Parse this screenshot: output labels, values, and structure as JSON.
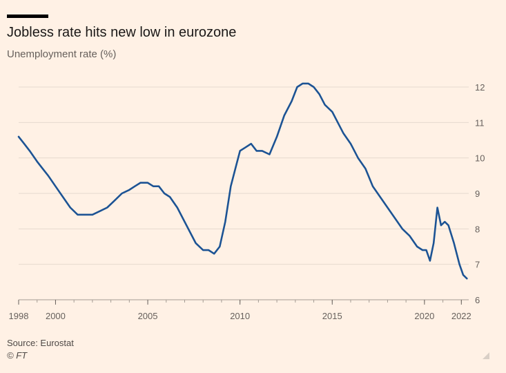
{
  "header": {
    "title": "Jobless rate hits new low in eurozone",
    "subtitle": "Unemployment rate (%)"
  },
  "footer": {
    "source": "Source: Eurostat",
    "copyright": "© FT"
  },
  "colors": {
    "background": "#fff1e5",
    "line": "#1c5394",
    "grid": "#e6d9ce",
    "axis": "#66605c"
  },
  "chart_data": {
    "type": "line",
    "title": "Jobless rate hits new low in eurozone",
    "ylabel": "Unemployment rate (%)",
    "xlabel": "",
    "ylim": [
      6,
      12
    ],
    "xlim": [
      1998,
      2022.4
    ],
    "y_ticks": [
      6,
      7,
      8,
      9,
      10,
      11,
      12
    ],
    "x_tick_labels": [
      "1998",
      "2000",
      "2005",
      "2010",
      "2015",
      "2020",
      "2022"
    ],
    "x_tick_values": [
      1998,
      2000,
      2005,
      2010,
      2015,
      2020,
      2022
    ],
    "grid": true,
    "series": [
      {
        "name": "Eurozone unemployment rate",
        "x": [
          1998.0,
          1998.3,
          1998.6,
          1999.0,
          1999.3,
          1999.6,
          2000.0,
          2000.4,
          2000.8,
          2001.2,
          2001.6,
          2002.0,
          2002.4,
          2002.8,
          2003.2,
          2003.6,
          2004.0,
          2004.3,
          2004.6,
          2005.0,
          2005.3,
          2005.6,
          2005.9,
          2006.2,
          2006.6,
          2007.0,
          2007.3,
          2007.6,
          2008.0,
          2008.3,
          2008.6,
          2008.9,
          2009.2,
          2009.5,
          2009.8,
          2010.0,
          2010.3,
          2010.6,
          2010.9,
          2011.2,
          2011.6,
          2012.0,
          2012.4,
          2012.8,
          2013.1,
          2013.4,
          2013.7,
          2014.0,
          2014.3,
          2014.6,
          2015.0,
          2015.3,
          2015.6,
          2016.0,
          2016.4,
          2016.8,
          2017.2,
          2017.6,
          2018.0,
          2018.4,
          2018.8,
          2019.2,
          2019.6,
          2019.9,
          2020.1,
          2020.3,
          2020.5,
          2020.7,
          2020.9,
          2021.1,
          2021.3,
          2021.6,
          2021.9,
          2022.1,
          2022.3
        ],
        "values": [
          10.6,
          10.4,
          10.2,
          9.9,
          9.7,
          9.5,
          9.2,
          8.9,
          8.6,
          8.4,
          8.4,
          8.4,
          8.5,
          8.6,
          8.8,
          9.0,
          9.1,
          9.2,
          9.3,
          9.3,
          9.2,
          9.2,
          9.0,
          8.9,
          8.6,
          8.2,
          7.9,
          7.6,
          7.4,
          7.4,
          7.3,
          7.5,
          8.2,
          9.2,
          9.8,
          10.2,
          10.3,
          10.4,
          10.2,
          10.2,
          10.1,
          10.6,
          11.2,
          11.6,
          12.0,
          12.1,
          12.1,
          12.0,
          11.8,
          11.5,
          11.3,
          11.0,
          10.7,
          10.4,
          10.0,
          9.7,
          9.2,
          8.9,
          8.6,
          8.3,
          8.0,
          7.8,
          7.5,
          7.4,
          7.4,
          7.1,
          7.6,
          8.6,
          8.1,
          8.2,
          8.1,
          7.6,
          7.0,
          6.7,
          6.6
        ]
      }
    ]
  }
}
